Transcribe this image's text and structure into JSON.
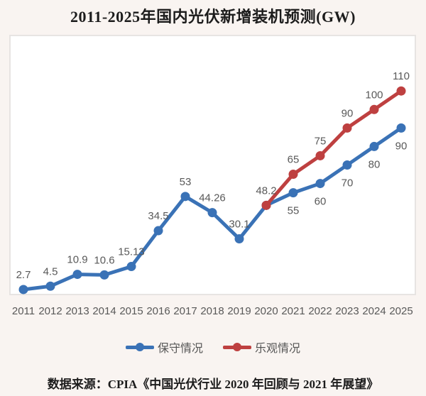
{
  "title": "2011-2025年国内光伏新增装机预测(GW)",
  "source": "数据来源：CPIA《中国光伏行业 2020 年回顾与 2021 年展望》",
  "chart_data": {
    "type": "line",
    "title": "2011-2025年国内光伏新增装机预测(GW)",
    "categories": [
      "2011",
      "2012",
      "2013",
      "2014",
      "2015",
      "2016",
      "2017",
      "2018",
      "2019",
      "2020",
      "2021",
      "2022",
      "2023",
      "2024",
      "2025"
    ],
    "ylim": [
      0,
      140
    ],
    "grid": false,
    "legend_position": "bottom",
    "plot_bg": "#ffffff",
    "frame_color": "#e7e4e2",
    "label_color": "#595959",
    "series": [
      {
        "id": "conservative",
        "name": "保守情况",
        "color": "#3A72B6",
        "start_index": 0,
        "values": [
          2.7,
          4.5,
          10.9,
          10.6,
          15.13,
          34.5,
          53,
          44.26,
          30.1,
          48.2,
          55,
          60,
          70,
          80,
          90
        ],
        "label_pos": [
          "above",
          "above",
          "above",
          "above",
          "above",
          "above",
          "above",
          "above",
          "above",
          "none",
          "below",
          "below",
          "below",
          "below",
          "below"
        ]
      },
      {
        "id": "optimistic",
        "name": "乐观情况",
        "color": "#BE4040",
        "start_index": 9,
        "values": [
          48.2,
          65,
          75,
          90,
          100,
          110
        ],
        "label_pos": [
          "above",
          "above",
          "above",
          "above",
          "above",
          "above"
        ]
      }
    ]
  }
}
